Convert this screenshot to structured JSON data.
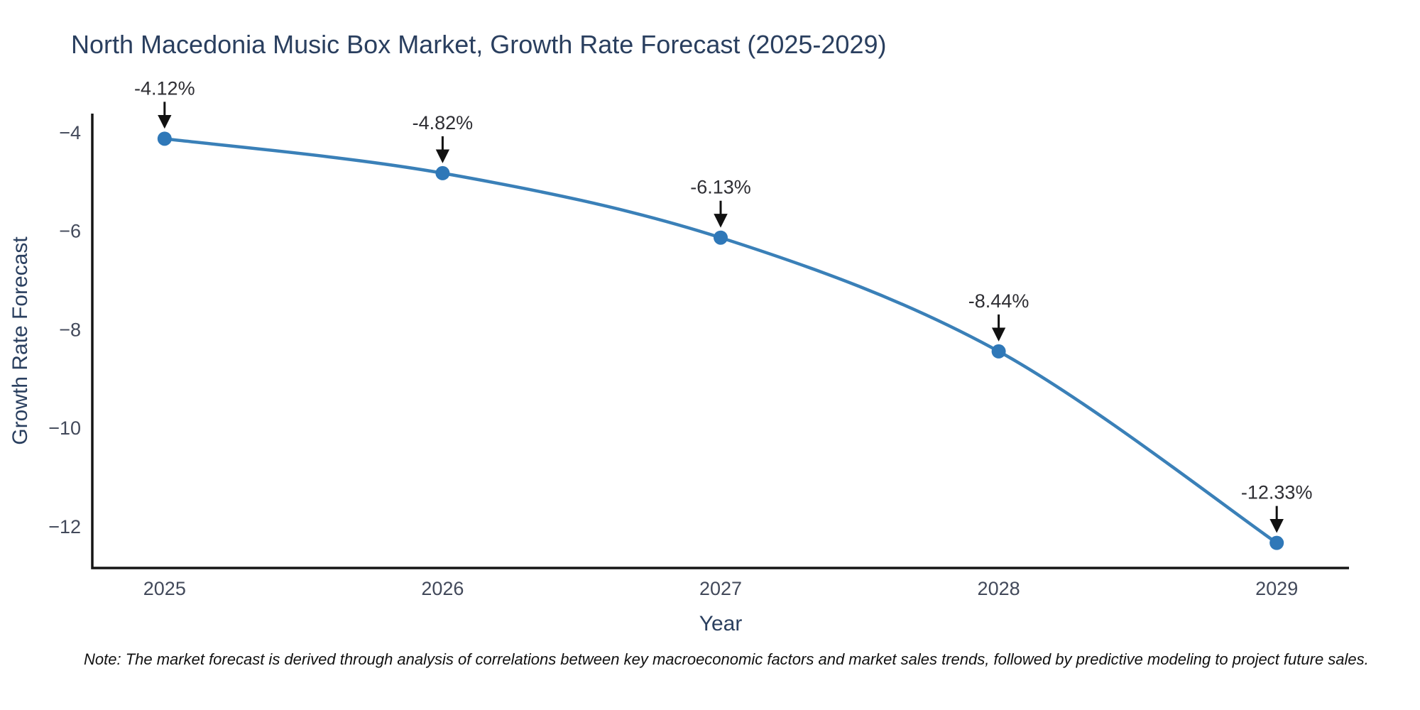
{
  "chart_data": {
    "type": "line",
    "title": "North Macedonia Music Box Market, Growth Rate Forecast (2025-2029)",
    "xlabel": "Year",
    "ylabel": "Growth Rate Forecast",
    "x": [
      2025,
      2026,
      2027,
      2028,
      2029
    ],
    "series": [
      {
        "name": "Growth Rate Forecast",
        "values": [
          -4.12,
          -4.82,
          -6.13,
          -8.44,
          -12.33
        ]
      }
    ],
    "point_labels": [
      "-4.12%",
      "-4.82%",
      "-6.13%",
      "-8.44%",
      "-12.33%"
    ],
    "x_tick_labels": [
      "2025",
      "2026",
      "2027",
      "2028",
      "2029"
    ],
    "x_tick_values": [
      2025,
      2026,
      2027,
      2028,
      2029
    ],
    "y_tick_labels": [
      "−4",
      "−6",
      "−8",
      "−10",
      "−12"
    ],
    "y_tick_values": [
      -4,
      -6,
      -8,
      -10,
      -12
    ],
    "xlim": [
      2024.74,
      2029.26
    ],
    "ylim": [
      -12.84,
      -3.61
    ],
    "grid": false,
    "legend_position": "none",
    "curve": "spline",
    "line_width": 4.5,
    "marker_radius": 10,
    "colors": {
      "line": "#3a80b8",
      "marker": "#2f78b8",
      "axis_line": "#151515",
      "title": "#2a3f5f",
      "axis_title": "#2a3f5f",
      "tick_label": "#42495a",
      "annotation_text": "#2e2e33",
      "arrow": "#111111",
      "background": "#ffffff"
    }
  },
  "note": "Note: The market forecast is derived through analysis of correlations between key macroeconomic factors and market sales trends, followed by predictive modeling to project future sales."
}
